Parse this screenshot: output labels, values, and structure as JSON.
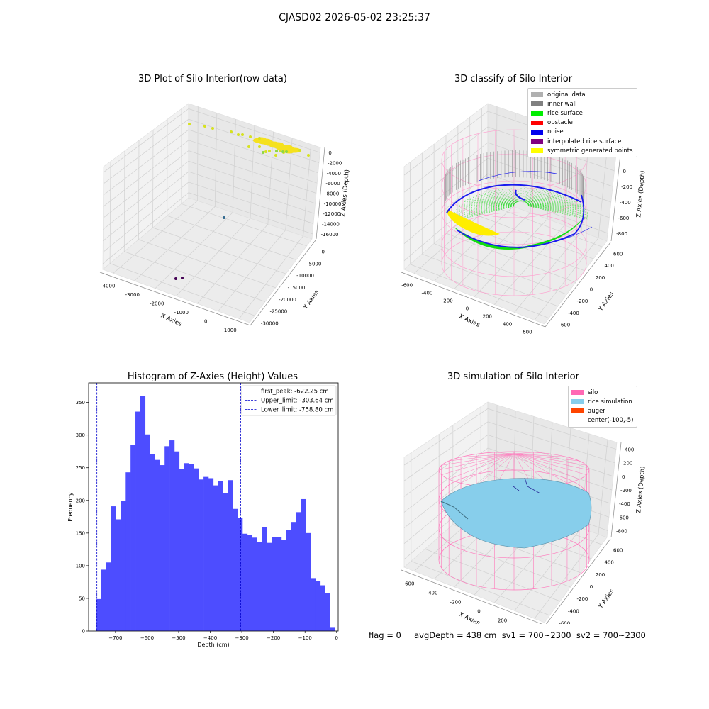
{
  "suptitle": "CJASD02 2026-05-02 23:25:37",
  "panels": {
    "raw": {
      "title": "3D Plot of Silo Interior(row data)",
      "xlabel": "X Axies",
      "ylabel": "Y Axies",
      "zlabel": "Z Axies (Depth)",
      "xticks": [
        "-4000",
        "-3000",
        "-2000",
        "-1000",
        "0",
        "1000"
      ],
      "yticks": [
        "0",
        "-5000",
        "-10000",
        "-15000",
        "-20000",
        "-25000",
        "-30000"
      ],
      "zticks": [
        "0",
        "-2000",
        "-4000",
        "-6000",
        "-8000",
        "-10000",
        "-12000",
        "-14000",
        "-16000"
      ]
    },
    "classify": {
      "title": "3D classify of Silo Interior",
      "xlabel": "X Axies",
      "ylabel": "Y Axies",
      "zlabel": "Z Axies (Depth)",
      "xticks": [
        "-600",
        "-400",
        "-200",
        "0",
        "200",
        "400",
        "600"
      ],
      "yticks": [
        "600",
        "400",
        "200",
        "0",
        "-200",
        "-400",
        "-600"
      ],
      "zticks": [
        "200",
        "0",
        "-200",
        "-400",
        "-600",
        "-800"
      ],
      "legend": [
        {
          "label": "original data",
          "color": "#b0b0b0"
        },
        {
          "label": "inner wall",
          "color": "#808080"
        },
        {
          "label": "rice surface",
          "color": "#00ee00"
        },
        {
          "label": "obstacle",
          "color": "#ff0000"
        },
        {
          "label": "noise",
          "color": "#0000ee"
        },
        {
          "label": "interpolated rice surface",
          "color": "#800080"
        },
        {
          "label": "symmetric generated points",
          "color": "#ffff00"
        }
      ]
    },
    "simulation": {
      "title": "3D simulation of Silo Interior",
      "xlabel": "X Axies",
      "ylabel": "Y Axies",
      "zlabel": "Z Axies (Depth)",
      "xticks": [
        "-600",
        "-400",
        "-200",
        "0",
        "200",
        "400"
      ],
      "yticks": [
        "600",
        "400",
        "200",
        "0",
        "-200",
        "-400",
        "-600"
      ],
      "zticks": [
        "400",
        "200",
        "0",
        "-200",
        "-400",
        "-600",
        "-800"
      ],
      "legend": [
        {
          "label": "silo",
          "color": "#ff69b4"
        },
        {
          "label": "rice simulation",
          "color": "#87ceeb"
        },
        {
          "label": "auger",
          "color": "#ff4500"
        },
        {
          "label": "center(-100,-5)",
          "color": ""
        }
      ]
    }
  },
  "chart_data": {
    "type": "bar",
    "title": "Histogram of Z-Axies (Height) Values",
    "xlabel": "Depth (cm)",
    "ylabel": "Frequency",
    "xlim": [
      -785,
      5
    ],
    "ylim": [
      0,
      380
    ],
    "xticks": [
      -700,
      -600,
      -500,
      -400,
      -300,
      -200,
      -100,
      0
    ],
    "yticks": [
      0,
      50,
      100,
      150,
      200,
      250,
      300,
      350
    ],
    "bin_start": -760,
    "bin_width": 15.4,
    "counts": [
      49,
      94,
      105,
      191,
      171,
      199,
      243,
      285,
      336,
      360,
      301,
      271,
      262,
      254,
      283,
      292,
      275,
      248,
      257,
      256,
      249,
      232,
      236,
      234,
      223,
      230,
      211,
      231,
      187,
      173,
      149,
      147,
      143,
      136,
      159,
      135,
      144,
      144,
      139,
      155,
      167,
      182,
      202,
      150,
      81,
      77,
      70,
      58,
      5
    ],
    "bar_color": "#4d4dff",
    "lines": [
      {
        "label": "first_peak: -622.25 cm",
        "x": -622.25,
        "color": "#ff0000"
      },
      {
        "label": "Upper_limit: -303.64 cm",
        "x": -303.64,
        "color": "#0000cc"
      },
      {
        "label": "Lower_limit: -758.80 cm",
        "x": -758.8,
        "color": "#0000cc"
      }
    ],
    "legend_position": "top-right"
  },
  "footer": "flag = 0     avgDepth = 438 cm  sv1 = 700~2300  sv2 = 700~2300"
}
